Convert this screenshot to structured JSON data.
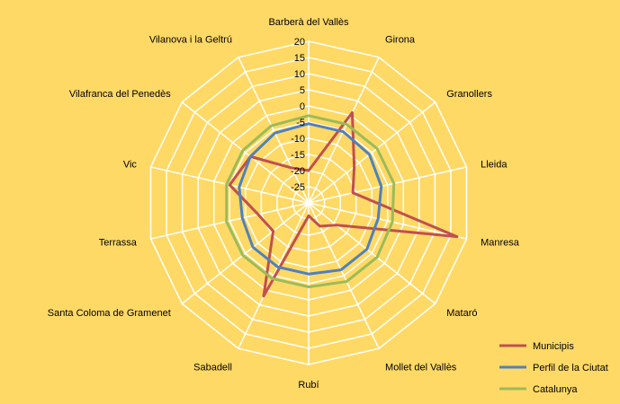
{
  "chart_data": {
    "type": "radar",
    "title": "",
    "categories": [
      "Barberà del Vallès",
      "Girona",
      "Granollers",
      "Lleida",
      "Manresa",
      "Mataró",
      "Mollet del Vallès",
      "Rubí",
      "Sabadell",
      "Santa Coloma de Gramenet",
      "Terrassa",
      "Vic",
      "Vilafranca  del Penedès",
      "Vilanova i la Geltrú"
    ],
    "tick_labels": [
      "-25",
      "-20",
      "-15",
      "-10",
      "-5",
      "0",
      "5",
      "10",
      "15",
      "20"
    ],
    "rlim": [
      -30,
      20
    ],
    "grid": true,
    "legend_position": "bottom-right",
    "series": [
      {
        "name": "Municipis",
        "color": "#C0504D",
        "values": [
          -20,
          1,
          -12,
          -16,
          17,
          -19,
          -22,
          -26,
          2,
          -16,
          -14,
          -5,
          -7,
          -18
        ]
      },
      {
        "name": "Perfil de la Ciutat",
        "color": "#4F81BD",
        "values": [
          -5.5,
          -5.5,
          -6,
          -7,
          -8,
          -7,
          -7,
          -8,
          -8,
          -8,
          -9,
          -8,
          -7,
          -6
        ]
      },
      {
        "name": "Catalunya",
        "color": "#9BBB59",
        "values": [
          -3,
          -3,
          -3,
          -3,
          -3.5,
          -3,
          -3,
          -4,
          -4,
          -4,
          -4,
          -4,
          -4,
          -3.5
        ]
      }
    ]
  }
}
